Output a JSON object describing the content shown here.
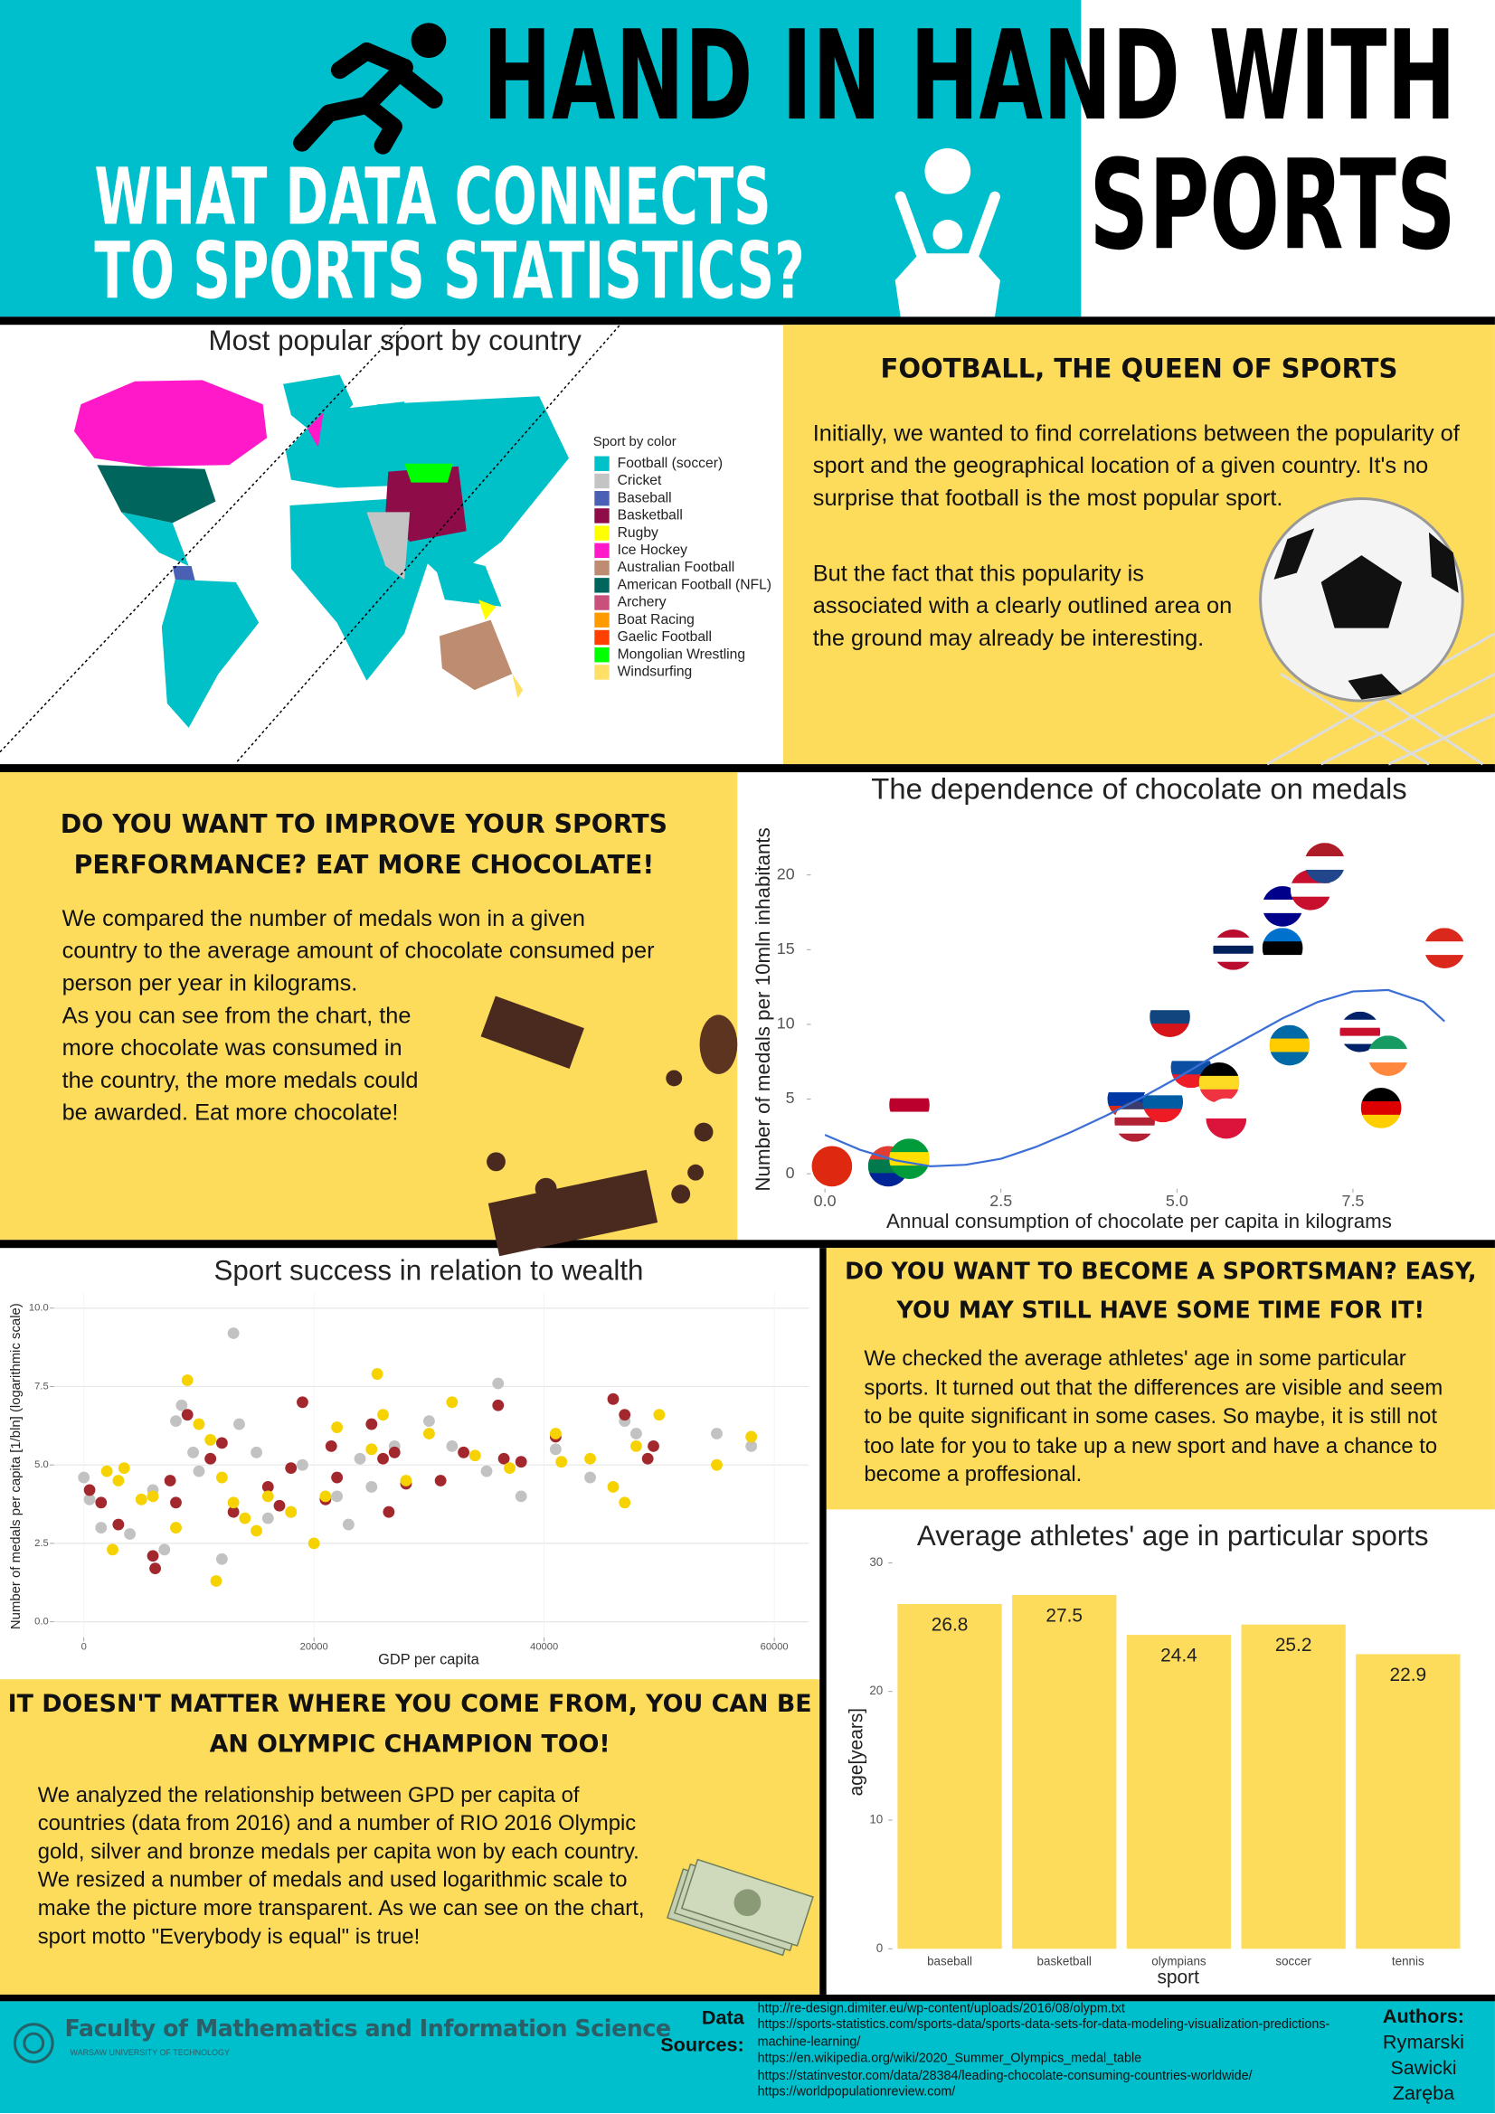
{
  "header": {
    "title_line1": "HAND IN HAND WITH",
    "title_line2": "SPORTS",
    "subtitle_line1": "WHAT DATA CONNECTS",
    "subtitle_line2": "TO SPORTS STATISTICS?"
  },
  "sections": {
    "football": {
      "heading": "FOOTBALL, THE QUEEN OF SPORTS",
      "paragraphs": [
        "Initially, we wanted to find correlations between the popularity of sport and the geographical location of a given country. It's no surprise that football is the most popular sport.",
        "But the fact that this popularity is associated with a clearly outlined area on the ground may already be interesting."
      ]
    },
    "chocolate": {
      "heading": "DO YOU WANT TO IMPROVE YOUR SPORTS PERFORMANCE? EAT MORE CHOCOLATE!",
      "paragraphs": [
        "We compared the number of medals won in a given country to the average amount of chocolate consumed per person per year in kilograms.",
        "As you can see from the chart, the more chocolate was consumed in the country, the more medals could be awarded. Eat more chocolate!"
      ]
    },
    "age": {
      "heading": "DO YOU WANT TO BECOME A SPORTSMAN? EASY, YOU MAY STILL HAVE SOME TIME FOR IT!",
      "paragraphs": [
        "We checked the average athletes' age in some particular sports. It turned out that the differences are visible and seem to be quite significant in some cases. So maybe, it is still not too late for you to take up a new sport and have a chance to become a proffesional."
      ]
    },
    "wealth": {
      "heading": "IT DOESN'T MATTER WHERE YOU COME FROM, YOU CAN BE AN OLYMPIC CHAMPION TOO!",
      "paragraphs": [
        "We analyzed the relationship between GPD per capita of countries (data from 2016) and a number of RIO 2016 Olympic gold, silver and bronze medals per capita won by each country. We resized a number of medals and used logarithmic scale to make the picture more transparent. As we can see on the chart, sport motto \"Everybody is equal\" is true!"
      ]
    }
  },
  "chart_data": [
    {
      "type": "map",
      "title": "Most popular sport by country",
      "legend_title": "Sport by color",
      "categories": [
        "Football (soccer)",
        "Cricket",
        "Baseball",
        "Basketball",
        "Rugby",
        "Ice Hockey",
        "Australian Football",
        "American Football (NFL)",
        "Archery",
        "Boat Racing",
        "Gaelic Football",
        "Mongolian Wrestling",
        "Windsurfing"
      ],
      "colors": [
        "#00c0c8",
        "#c4c4c4",
        "#4a60b5",
        "#8e0c48",
        "#ffff00",
        "#ff19c8",
        "#be8c70",
        "#00655c",
        "#c8507a",
        "#ff9a00",
        "#ff4000",
        "#00ff00",
        "#ffe066"
      ]
    },
    {
      "type": "scatter",
      "title": "The dependence of chocolate on medals",
      "x_label": "Annual consumption of chocolate per capita in kilograms",
      "y_label": "Number of medals per 10mln inhabitants",
      "xlim": [
        -0.2,
        9
      ],
      "ylim": [
        -1,
        23
      ],
      "xticks": [
        {
          "value": 0,
          "label": "0.0"
        },
        {
          "value": 2.5,
          "label": "2.5"
        },
        {
          "value": 5,
          "label": "5.0"
        },
        {
          "value": 7.5,
          "label": "7.5"
        }
      ],
      "yticks": [
        0,
        5,
        10,
        15,
        20
      ],
      "grid": false,
      "series": [
        {
          "x": [
            0.1,
            0.9,
            1.2,
            1.2,
            4.3,
            4.4,
            4.8,
            4.9,
            5.2,
            5.6,
            5.7,
            5.8,
            6.5,
            6.5,
            6.9,
            7.1,
            6.6,
            7.6,
            8.0,
            7.9,
            8.8
          ],
          "values": [
            0.5,
            0.5,
            1.0,
            4.6,
            5.0,
            3.5,
            4.8,
            10.5,
            7.1,
            6.1,
            3.7,
            15.0,
            15.1,
            17.9,
            19.0,
            20.8,
            8.6,
            9.5,
            7.9,
            4.4,
            15.1
          ],
          "flags": [
            [
              "#de2910"
            ],
            [
              "#e03c31",
              "#007a4d",
              "#002395"
            ],
            [
              "#009c3b",
              "#ffdf00",
              "#009c3b"
            ],
            [
              "#ffffff",
              "#bc002d",
              "#ffffff"
            ],
            [
              "#ffffff",
              "#0039a6",
              "#d52b1e"
            ],
            [
              "#3c3b6e",
              "#ffffff",
              "#b22234",
              "#ffffff",
              "#b22234"
            ],
            [
              "#ffffff",
              "#005da4",
              "#ed1c24"
            ],
            [
              "#ffffff",
              "#11457e",
              "#d7141a"
            ],
            [
              "#ffffff",
              "#0b4ea2",
              "#ee1c25"
            ],
            [
              "#000000",
              "#fdda24",
              "#ef3340"
            ],
            [
              "#ffffff",
              "#dc143c"
            ],
            [
              "#ba0c2f",
              "#ffffff",
              "#00205b",
              "#ffffff",
              "#ba0c2f"
            ],
            [
              "#0072ce",
              "#000000",
              "#ffffff"
            ],
            [
              "#00008b",
              "#ffffff",
              "#00008b"
            ],
            [
              "#c8102e",
              "#ffffff",
              "#c8102e"
            ],
            [
              "#ae1c28",
              "#ffffff",
              "#21468b"
            ],
            [
              "#006aa7",
              "#fecc00",
              "#006aa7"
            ],
            [
              "#012169",
              "#ffffff",
              "#c8102e",
              "#ffffff",
              "#012169"
            ],
            [
              "#169b62",
              "#ffffff",
              "#ff883e"
            ],
            [
              "#000000",
              "#dd0000",
              "#ffce00"
            ],
            [
              "#da291c",
              "#ffffff",
              "#da291c"
            ]
          ]
        }
      ],
      "trend": {
        "color": "#3b6fd6",
        "x": [
          0,
          0.5,
          1,
          1.5,
          2,
          2.5,
          3,
          3.5,
          4,
          4.5,
          5,
          5.5,
          6,
          6.5,
          7,
          7.5,
          8,
          8.5,
          8.8
        ],
        "values": [
          2.6,
          1.6,
          0.9,
          0.5,
          0.6,
          1.0,
          1.8,
          2.8,
          3.9,
          5.1,
          6.4,
          7.8,
          9.1,
          10.4,
          11.5,
          12.2,
          12.3,
          11.5,
          10.2
        ]
      }
    },
    {
      "type": "scatter",
      "title": "Sport success in relation to wealth",
      "x_label": "GDP per capita",
      "y_label": "Number of medals per capita [1/bln] (logarithmic scale)",
      "xlim": [
        -2600,
        63000
      ],
      "ylim": [
        -0.5,
        10.5
      ],
      "xticks": [
        0,
        20000,
        40000,
        60000
      ],
      "yticks": [
        {
          "value": 0,
          "label": "0.0"
        },
        {
          "value": 2.5,
          "label": "2.5"
        },
        {
          "value": 5,
          "label": "5.0"
        },
        {
          "value": 7.5,
          "label": "7.5"
        },
        {
          "value": 10,
          "label": "10.0"
        }
      ],
      "grid": true,
      "series": [
        {
          "color": "#c2c2c2",
          "x": [
            0,
            500,
            1500,
            4000,
            6000,
            7000,
            8000,
            8500,
            9500,
            10000,
            11000,
            12000,
            13000,
            13500,
            15000,
            16000,
            18000,
            19000,
            22000,
            23000,
            24000,
            25000,
            27000,
            30000,
            32000,
            35000,
            36000,
            38000,
            41000,
            44000,
            47000,
            48000,
            55000,
            58000
          ],
          "values": [
            4.6,
            3.9,
            3.0,
            2.8,
            4.2,
            2.3,
            6.4,
            6.9,
            5.4,
            4.8,
            5.2,
            2.0,
            9.2,
            6.3,
            5.4,
            3.3,
            3.5,
            5.0,
            4.0,
            3.1,
            5.2,
            4.3,
            5.6,
            6.4,
            5.6,
            4.8,
            7.6,
            4.0,
            5.5,
            4.6,
            6.4,
            6.0,
            6.0,
            5.6
          ]
        },
        {
          "color": "#a3282e",
          "x": [
            500,
            1500,
            3000,
            6000,
            6200,
            7500,
            8000,
            9000,
            11000,
            12000,
            13000,
            16000,
            17000,
            18000,
            19000,
            21000,
            21500,
            22000,
            25000,
            26000,
            26500,
            27000,
            28000,
            31000,
            33000,
            36000,
            36500,
            38000,
            41000,
            46000,
            47000,
            49000,
            49500
          ],
          "values": [
            4.2,
            3.8,
            3.1,
            2.1,
            1.7,
            4.5,
            3.8,
            6.6,
            5.2,
            5.7,
            3.5,
            4.3,
            3.7,
            4.9,
            7.0,
            3.9,
            5.6,
            4.6,
            6.3,
            5.2,
            3.5,
            5.4,
            4.4,
            4.5,
            5.4,
            6.9,
            5.2,
            5.1,
            5.9,
            7.1,
            6.6,
            5.2,
            5.6
          ]
        },
        {
          "color": "#f5d200",
          "x": [
            2000,
            2500,
            3000,
            3500,
            5000,
            6000,
            8000,
            9000,
            10000,
            11000,
            11500,
            12000,
            13000,
            14000,
            15000,
            16000,
            18000,
            20000,
            21000,
            22000,
            25000,
            25500,
            26000,
            28000,
            30000,
            32000,
            34000,
            37000,
            41000,
            41500,
            44000,
            46000,
            47000,
            48000,
            50000,
            55000,
            58000
          ],
          "values": [
            4.8,
            2.3,
            4.5,
            4.9,
            3.9,
            4.0,
            3.0,
            7.7,
            6.3,
            5.8,
            1.3,
            4.6,
            3.8,
            3.3,
            2.9,
            4.0,
            3.5,
            2.5,
            4.0,
            6.2,
            5.5,
            7.9,
            6.6,
            4.5,
            6.0,
            7.0,
            5.3,
            4.9,
            6.0,
            5.1,
            5.2,
            4.3,
            3.8,
            5.6,
            6.6,
            5.0,
            5.9
          ]
        }
      ]
    },
    {
      "type": "bar",
      "title": "Average athletes' age in particular sports",
      "x_label": "sport",
      "y_label": "age[years]",
      "categories": [
        "baseball",
        "basketball",
        "olympians",
        "soccer",
        "tennis"
      ],
      "values": [
        26.8,
        27.5,
        24.4,
        25.2,
        22.9
      ],
      "color": "#fddc5c",
      "ylim": [
        0,
        30.8
      ],
      "yticks": [
        0,
        10,
        20,
        30
      ],
      "grid": false
    }
  ],
  "footer": {
    "faculty": "Faculty of Mathematics and Information Science",
    "university": "WARSAW UNIVERSITY OF TECHNOLOGY",
    "sources_label": "Data Sources:",
    "sources": [
      "http://re-design.dimiter.eu/wp-content/uploads/2016/08/olypm.txt",
      "https://sports-statistics.com/sports-data/sports-data-sets-for-data-modeling-visualization-predictions-machine-learning/",
      "https://en.wikipedia.org/wiki/2020_Summer_Olympics_medal_table",
      "https://statinvestor.com/data/28384/leading-chocolate-consuming-countries-worldwide/",
      "https://worldpopulationreview.com/"
    ],
    "authors_label": "Authors:",
    "authors": [
      "Rymarski",
      "Sawicki",
      "Zaręba"
    ]
  }
}
